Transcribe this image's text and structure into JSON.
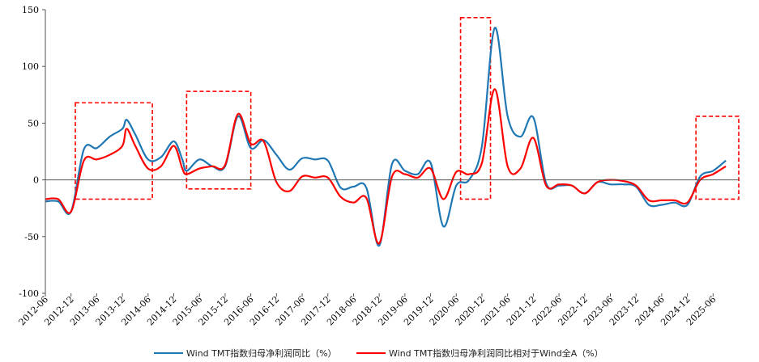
{
  "chart_data": {
    "type": "line",
    "title": "",
    "xlabel": "",
    "ylabel": "",
    "ylim": [
      -100,
      150
    ],
    "yticks": [
      -100,
      -50,
      0,
      50,
      100,
      150
    ],
    "xlim": [
      "2012-06",
      "2025-12"
    ],
    "xtick_labels": [
      "2012-06",
      "2012-12",
      "2013-06",
      "2013-12",
      "2014-06",
      "2014-12",
      "2015-06",
      "2015-12",
      "2016-06",
      "2016-12",
      "2017-06",
      "2017-12",
      "2018-06",
      "2018-12",
      "2019-06",
      "2019-12",
      "2020-06",
      "2020-12",
      "2021-06",
      "2021-12",
      "2022-06",
      "2022-12",
      "2023-06",
      "2023-12",
      "2024-06",
      "2024-12",
      "2025-06"
    ],
    "grid": false,
    "legend_position": "bottom",
    "series": [
      {
        "name": "Wind TMT指数归母净利润同比（%）",
        "color": "#1f77b4",
        "points": [
          [
            "2012-06",
            -19
          ],
          [
            "2012-09",
            -19
          ],
          [
            "2012-12",
            -28
          ],
          [
            "2013-03",
            27
          ],
          [
            "2013-06",
            28
          ],
          [
            "2013-09",
            38
          ],
          [
            "2013-12",
            45
          ],
          [
            "2014-01",
            53
          ],
          [
            "2014-03",
            40
          ],
          [
            "2014-06",
            18
          ],
          [
            "2014-09",
            20
          ],
          [
            "2014-12",
            34
          ],
          [
            "2015-02",
            18
          ],
          [
            "2015-03",
            8
          ],
          [
            "2015-06",
            18
          ],
          [
            "2015-09",
            12
          ],
          [
            "2015-12",
            12
          ],
          [
            "2016-03",
            56
          ],
          [
            "2016-06",
            28
          ],
          [
            "2016-09",
            35
          ],
          [
            "2016-12",
            22
          ],
          [
            "2017-03",
            9
          ],
          [
            "2017-06",
            19
          ],
          [
            "2017-09",
            18
          ],
          [
            "2017-12",
            17
          ],
          [
            "2018-03",
            -7
          ],
          [
            "2018-06",
            -6
          ],
          [
            "2018-09",
            -7
          ],
          [
            "2018-12",
            -58
          ],
          [
            "2019-03",
            14
          ],
          [
            "2019-06",
            8
          ],
          [
            "2019-09",
            5
          ],
          [
            "2019-12",
            15
          ],
          [
            "2020-03",
            -41
          ],
          [
            "2020-06",
            -5
          ],
          [
            "2020-09",
            0
          ],
          [
            "2020-12",
            30
          ],
          [
            "2021-03",
            134
          ],
          [
            "2021-06",
            56
          ],
          [
            "2021-09",
            38
          ],
          [
            "2021-12",
            55
          ],
          [
            "2022-03",
            -3
          ],
          [
            "2022-06",
            -5
          ],
          [
            "2022-09",
            -5
          ],
          [
            "2022-12",
            -12
          ],
          [
            "2023-03",
            -2
          ],
          [
            "2023-06",
            -4
          ],
          [
            "2023-09",
            -4
          ],
          [
            "2023-12",
            -6
          ],
          [
            "2024-03",
            -22
          ],
          [
            "2024-06",
            -22
          ],
          [
            "2024-09",
            -20
          ],
          [
            "2024-12",
            -22
          ],
          [
            "2025-03",
            3
          ],
          [
            "2025-06",
            8
          ],
          [
            "2025-09",
            17
          ]
        ]
      },
      {
        "name": "Wind TMT指数归母净利润同比相对于Wind全A（%）",
        "color": "#ff0000",
        "points": [
          [
            "2012-06",
            -17
          ],
          [
            "2012-09",
            -17
          ],
          [
            "2012-12",
            -28
          ],
          [
            "2013-03",
            17
          ],
          [
            "2013-06",
            18
          ],
          [
            "2013-09",
            22
          ],
          [
            "2013-12",
            30
          ],
          [
            "2014-01",
            45
          ],
          [
            "2014-03",
            30
          ],
          [
            "2014-06",
            10
          ],
          [
            "2014-09",
            12
          ],
          [
            "2014-12",
            30
          ],
          [
            "2015-02",
            10
          ],
          [
            "2015-03",
            5
          ],
          [
            "2015-06",
            10
          ],
          [
            "2015-09",
            12
          ],
          [
            "2015-12",
            13
          ],
          [
            "2016-03",
            58
          ],
          [
            "2016-06",
            32
          ],
          [
            "2016-09",
            34
          ],
          [
            "2016-12",
            -2
          ],
          [
            "2017-03",
            -10
          ],
          [
            "2017-06",
            3
          ],
          [
            "2017-09",
            2
          ],
          [
            "2017-12",
            2
          ],
          [
            "2018-03",
            -15
          ],
          [
            "2018-06",
            -20
          ],
          [
            "2018-09",
            -16
          ],
          [
            "2018-12",
            -56
          ],
          [
            "2019-03",
            3
          ],
          [
            "2019-06",
            5
          ],
          [
            "2019-09",
            2
          ],
          [
            "2019-12",
            10
          ],
          [
            "2020-03",
            -17
          ],
          [
            "2020-06",
            7
          ],
          [
            "2020-09",
            5
          ],
          [
            "2020-12",
            15
          ],
          [
            "2021-03",
            80
          ],
          [
            "2021-06",
            12
          ],
          [
            "2021-09",
            10
          ],
          [
            "2021-12",
            37
          ],
          [
            "2022-03",
            -5
          ],
          [
            "2022-06",
            -4
          ],
          [
            "2022-09",
            -5
          ],
          [
            "2022-12",
            -12
          ],
          [
            "2023-03",
            -2
          ],
          [
            "2023-06",
            0
          ],
          [
            "2023-09",
            -1
          ],
          [
            "2023-12",
            -5
          ],
          [
            "2024-03",
            -18
          ],
          [
            "2024-06",
            -18
          ],
          [
            "2024-09",
            -18
          ],
          [
            "2024-12",
            -20
          ],
          [
            "2025-03",
            0
          ],
          [
            "2025-06",
            5
          ],
          [
            "2025-09",
            12
          ]
        ]
      }
    ],
    "highlight_boxes": [
      {
        "x_start": "2013-01",
        "x_end": "2014-07",
        "y_low": -17,
        "y_high": 68
      },
      {
        "x_start": "2015-03",
        "x_end": "2016-06",
        "y_low": -8,
        "y_high": 78
      },
      {
        "x_start": "2020-07",
        "x_end": "2021-02",
        "y_low": -17,
        "y_high": 143
      },
      {
        "x_start": "2025-02",
        "x_end": "2025-12",
        "y_low": -17,
        "y_high": 56
      }
    ],
    "highlight_color": "#ff0000"
  }
}
